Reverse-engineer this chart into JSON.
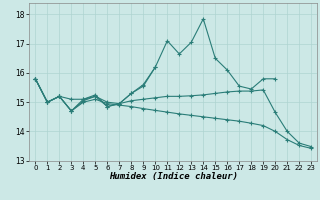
{
  "xlabel": "Humidex (Indice chaleur)",
  "xlim": [
    -0.5,
    23.5
  ],
  "ylim": [
    13,
    18.4
  ],
  "yticks": [
    13,
    14,
    15,
    16,
    17,
    18
  ],
  "xticks": [
    0,
    1,
    2,
    3,
    4,
    5,
    6,
    7,
    8,
    9,
    10,
    11,
    12,
    13,
    14,
    15,
    16,
    17,
    18,
    19,
    20,
    21,
    22,
    23
  ],
  "background_color": "#cce8e6",
  "line_color": "#2a7d78",
  "grid_color": "#afd4d1",
  "lines": [
    [
      15.8,
      15.0,
      15.2,
      14.7,
      15.1,
      15.2,
      14.85,
      14.95,
      15.3,
      15.6,
      16.2,
      17.1,
      16.65,
      17.05,
      17.85,
      16.5,
      16.1,
      15.55,
      15.45,
      15.8,
      15.8,
      null,
      null,
      null
    ],
    [
      15.8,
      15.0,
      15.2,
      15.1,
      15.1,
      15.25,
      14.85,
      14.95,
      15.3,
      15.55,
      16.2,
      null,
      null,
      null,
      null,
      null,
      null,
      null,
      null,
      null,
      null,
      null,
      null,
      null
    ],
    [
      15.8,
      15.0,
      15.2,
      14.7,
      15.05,
      15.2,
      15.0,
      14.95,
      15.05,
      15.1,
      15.15,
      15.2,
      15.2,
      15.22,
      15.25,
      15.3,
      15.35,
      15.38,
      15.38,
      15.42,
      14.65,
      14.0,
      13.6,
      13.48
    ],
    [
      15.8,
      15.0,
      15.2,
      14.7,
      15.0,
      15.1,
      14.95,
      14.9,
      14.85,
      14.78,
      14.72,
      14.66,
      14.6,
      14.55,
      14.5,
      14.45,
      14.4,
      14.35,
      14.28,
      14.2,
      14.0,
      13.72,
      13.52,
      13.42
    ]
  ]
}
